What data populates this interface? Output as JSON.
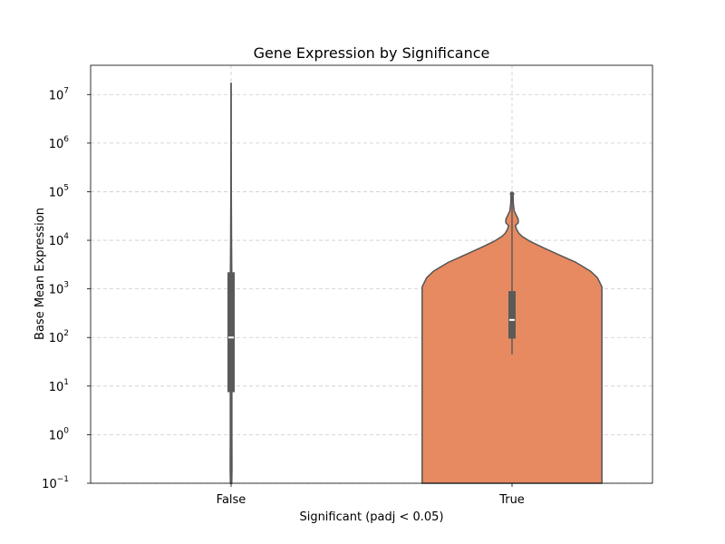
{
  "chart_data": {
    "type": "violin",
    "title": "Gene Expression by Significance",
    "xlabel": "Significant (padj < 0.05)",
    "ylabel": "Base Mean Expression",
    "yscale": "log",
    "ylim": [
      0.1,
      40000000
    ],
    "grid": true,
    "yticks": [
      {
        "base": "10",
        "exp": "−1",
        "value": 0.1
      },
      {
        "base": "10",
        "exp": "0",
        "value": 1
      },
      {
        "base": "10",
        "exp": "1",
        "value": 10
      },
      {
        "base": "10",
        "exp": "2",
        "value": 100
      },
      {
        "base": "10",
        "exp": "3",
        "value": 1000
      },
      {
        "base": "10",
        "exp": "4",
        "value": 10000
      },
      {
        "base": "10",
        "exp": "5",
        "value": 100000
      },
      {
        "base": "10",
        "exp": "6",
        "value": 1000000
      },
      {
        "base": "10",
        "exp": "7",
        "value": 10000000
      }
    ],
    "categories": [
      "False",
      "True"
    ],
    "groups": [
      {
        "category": "False",
        "color": "#66c2a5",
        "min": 0.1,
        "max": 17000000,
        "q1": 7.5,
        "median": 100,
        "q3": 2200,
        "density": [
          [
            0.1,
            0.006
          ],
          [
            0.2,
            0.008
          ],
          [
            1,
            0.007
          ],
          [
            10,
            0.007
          ],
          [
            100,
            0.007
          ],
          [
            1000,
            0.007
          ],
          [
            10000,
            0.004
          ],
          [
            100000,
            0.002
          ],
          [
            1000000,
            0.001
          ],
          [
            17000000,
            0.0005
          ]
        ]
      },
      {
        "category": "True",
        "color": "#e78a61",
        "min": 45,
        "max": 90000,
        "q1": 95,
        "median": 230,
        "q3": 900,
        "whisker_low": 45,
        "whisker_high": 1400,
        "density": [
          [
            0.1,
            0.8
          ],
          [
            1,
            0.8
          ],
          [
            10,
            0.8
          ],
          [
            100,
            0.8
          ],
          [
            600,
            0.8
          ],
          [
            1100,
            0.8
          ],
          [
            1700,
            0.76
          ],
          [
            2300,
            0.7
          ],
          [
            3500,
            0.57
          ],
          [
            5000,
            0.42
          ],
          [
            7000,
            0.28
          ],
          [
            9500,
            0.16
          ],
          [
            12000,
            0.09
          ],
          [
            14000,
            0.06
          ],
          [
            17000,
            0.04
          ],
          [
            20000,
            0.03
          ],
          [
            23000,
            0.055
          ],
          [
            27000,
            0.055
          ],
          [
            32000,
            0.04
          ],
          [
            40000,
            0.02
          ],
          [
            55000,
            0.012
          ],
          [
            70000,
            0.01
          ],
          [
            90000,
            0.009
          ]
        ]
      }
    ]
  }
}
